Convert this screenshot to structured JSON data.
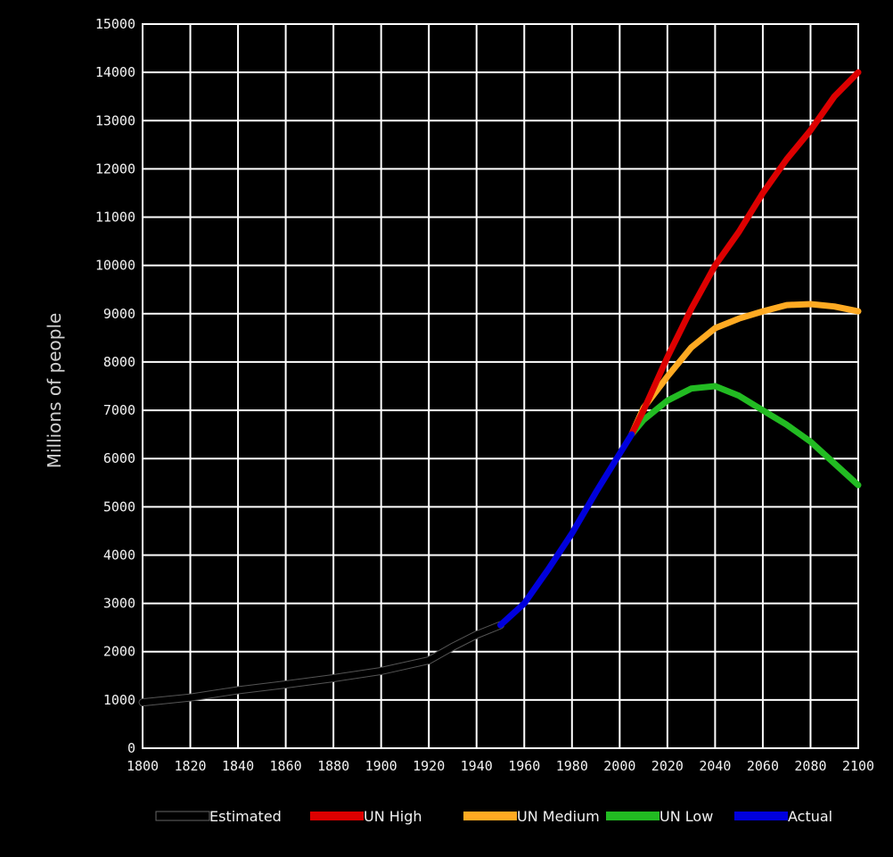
{
  "chart_data": {
    "type": "line",
    "title": "",
    "xlabel": "",
    "ylabel": "Millions of people",
    "xlim": [
      1800,
      2100
    ],
    "ylim": [
      0,
      15000
    ],
    "grid": true,
    "legend_position": "bottom",
    "x_ticks": [
      "1800",
      "1820",
      "1840",
      "1860",
      "1880",
      "1900",
      "1920",
      "1940",
      "1960",
      "1980",
      "2000",
      "2020",
      "2040",
      "2060",
      "2080",
      "2100"
    ],
    "y_ticks": [
      "0",
      "1000",
      "2000",
      "3000",
      "4000",
      "5000",
      "6000",
      "7000",
      "8000",
      "9000",
      "10000",
      "11000",
      "12000",
      "13000",
      "14000",
      "15000"
    ],
    "series": [
      {
        "name": "Estimated",
        "color": "#000000",
        "points": [
          [
            1800,
            950
          ],
          [
            1820,
            1050
          ],
          [
            1840,
            1200
          ],
          [
            1860,
            1320
          ],
          [
            1880,
            1450
          ],
          [
            1900,
            1600
          ],
          [
            1920,
            1820
          ],
          [
            1930,
            2100
          ],
          [
            1940,
            2350
          ],
          [
            1950,
            2550
          ]
        ]
      },
      {
        "name": "UN High",
        "color": "#dd0000",
        "points": [
          [
            2005,
            6500
          ],
          [
            2010,
            7000
          ],
          [
            2020,
            8100
          ],
          [
            2030,
            9100
          ],
          [
            2040,
            10000
          ],
          [
            2050,
            10700
          ],
          [
            2060,
            11500
          ],
          [
            2070,
            12200
          ],
          [
            2080,
            12800
          ],
          [
            2090,
            13500
          ],
          [
            2100,
            14000
          ]
        ]
      },
      {
        "name": "UN Medium",
        "color": "#ffaa22",
        "points": [
          [
            2005,
            6500
          ],
          [
            2010,
            7050
          ],
          [
            2020,
            7700
          ],
          [
            2030,
            8300
          ],
          [
            2040,
            8700
          ],
          [
            2050,
            8900
          ],
          [
            2060,
            9050
          ],
          [
            2070,
            9180
          ],
          [
            2080,
            9200
          ],
          [
            2090,
            9150
          ],
          [
            2100,
            9050
          ]
        ]
      },
      {
        "name": "UN Low",
        "color": "#22bb22",
        "points": [
          [
            2005,
            6500
          ],
          [
            2010,
            6800
          ],
          [
            2020,
            7200
          ],
          [
            2030,
            7450
          ],
          [
            2040,
            7500
          ],
          [
            2050,
            7300
          ],
          [
            2060,
            7000
          ],
          [
            2070,
            6700
          ],
          [
            2080,
            6350
          ],
          [
            2090,
            5900
          ],
          [
            2100,
            5450
          ]
        ]
      },
      {
        "name": "Actual",
        "color": "#0000dd",
        "points": [
          [
            1950,
            2550
          ],
          [
            1960,
            3000
          ],
          [
            1970,
            3700
          ],
          [
            1980,
            4450
          ],
          [
            1990,
            5300
          ],
          [
            2000,
            6100
          ],
          [
            2005,
            6500
          ]
        ]
      }
    ]
  }
}
